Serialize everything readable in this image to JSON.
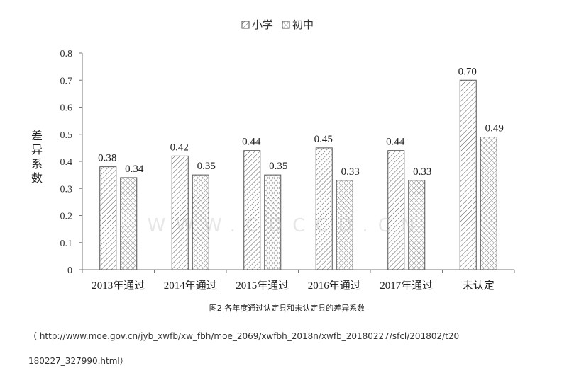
{
  "chart_data": {
    "type": "bar",
    "categories": [
      "2013年通过",
      "2014年通过",
      "2015年通过",
      "2016年通过",
      "2017年通过",
      "未认定"
    ],
    "series": [
      {
        "name": "小学",
        "values": [
          0.38,
          0.42,
          0.44,
          0.45,
          0.44,
          0.7
        ],
        "labels": [
          "0.38",
          "0.42",
          "0.44",
          "0.45",
          "0.44",
          "0.70"
        ]
      },
      {
        "name": "初中",
        "values": [
          0.34,
          0.35,
          0.35,
          0.33,
          0.33,
          0.49
        ],
        "labels": [
          "0.34",
          "0.35",
          "0.35",
          "0.33",
          "0.33",
          "0.49"
        ]
      }
    ],
    "ylabel": "差异系数",
    "ylim": [
      0,
      0.8
    ],
    "yticks": [
      "0",
      "0.1",
      "0.2",
      "0.3",
      "0.4",
      "0.5",
      "0.6",
      "0.7",
      "0.8"
    ],
    "legend_position": "top-center",
    "grid": false,
    "series_patterns": [
      "diagonal-hatch",
      "crosshatch"
    ]
  },
  "caption": "图2 各年度通过认定县和未认定县的差异系数",
  "source_line1": "（  http://www.moe.gov.cn/jyb_xwfb/xw_fbh/moe_2069/xwfbh_2018n/xwfb_20180227/sfcl/201802/t20",
  "source_line2": "180227_327990.html）",
  "watermark": "WWW.CDCCD.CN"
}
